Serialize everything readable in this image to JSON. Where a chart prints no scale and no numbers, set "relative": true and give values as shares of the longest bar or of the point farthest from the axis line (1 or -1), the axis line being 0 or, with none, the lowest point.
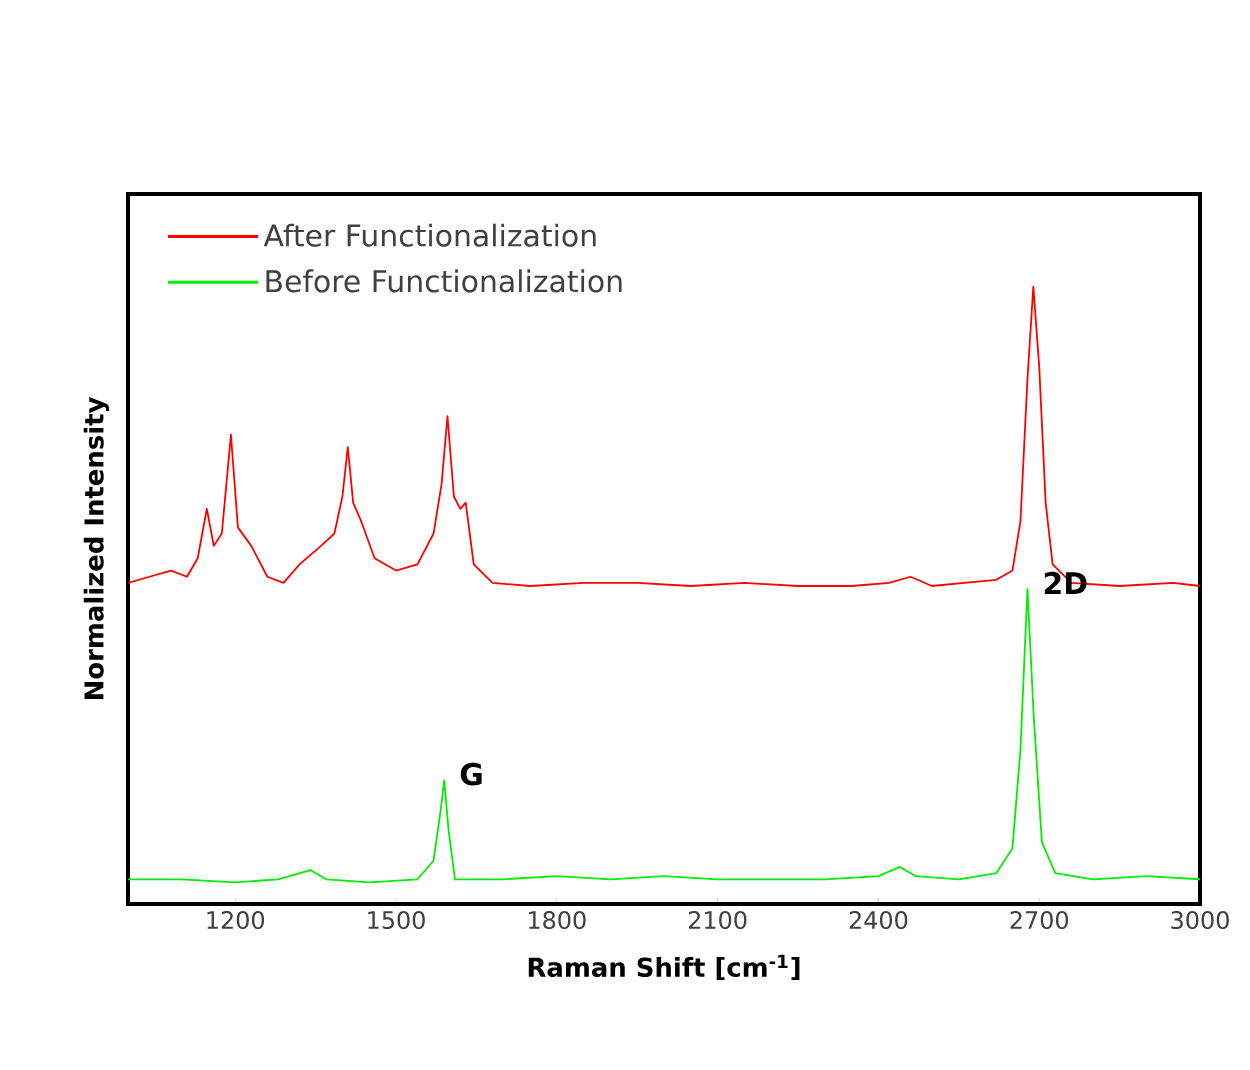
{
  "chart_data": {
    "type": "line",
    "relative": true,
    "xlabel": "Raman Shift [cm$^{-1}$]",
    "ylabel": "Normalized Intensity",
    "xlim": [
      1000,
      3000
    ],
    "xticks": [
      1200,
      1500,
      1800,
      2100,
      2400,
      2700,
      3000
    ],
    "legend": "top left",
    "grid": false,
    "marker": "none",
    "line_style": "solid",
    "series": [
      {
        "name": "After Functionalization",
        "color": "#ff0000",
        "x": [
          1000,
          1040,
          1080,
          1110,
          1130,
          1147,
          1160,
          1175,
          1192,
          1205,
          1230,
          1260,
          1290,
          1320,
          1360,
          1385,
          1400,
          1410,
          1420,
          1435,
          1460,
          1500,
          1540,
          1570,
          1585,
          1596,
          1608,
          1620,
          1630,
          1645,
          1680,
          1750,
          1850,
          1950,
          2050,
          2150,
          2250,
          2350,
          2420,
          2460,
          2500,
          2560,
          2620,
          2650,
          2665,
          2678,
          2689,
          2700,
          2712,
          2725,
          2760,
          2850,
          2950,
          3000
        ],
        "values": [
          0.52,
          0.53,
          0.54,
          0.53,
          0.56,
          0.64,
          0.58,
          0.6,
          0.76,
          0.61,
          0.58,
          0.53,
          0.52,
          0.55,
          0.58,
          0.6,
          0.66,
          0.74,
          0.65,
          0.62,
          0.56,
          0.54,
          0.55,
          0.6,
          0.68,
          0.79,
          0.66,
          0.64,
          0.65,
          0.55,
          0.52,
          0.515,
          0.52,
          0.52,
          0.515,
          0.52,
          0.515,
          0.515,
          0.52,
          0.53,
          0.515,
          0.52,
          0.525,
          0.54,
          0.62,
          0.85,
          1.0,
          0.87,
          0.65,
          0.55,
          0.52,
          0.515,
          0.52,
          0.515
        ]
      },
      {
        "name": "Before Functionalization",
        "color": "#00ee00",
        "x": [
          1000,
          1100,
          1200,
          1280,
          1340,
          1370,
          1450,
          1540,
          1570,
          1583,
          1590,
          1598,
          1610,
          1700,
          1800,
          1900,
          2000,
          2100,
          2200,
          2300,
          2400,
          2440,
          2470,
          2550,
          2620,
          2650,
          2665,
          2678,
          2690,
          2705,
          2730,
          2800,
          2900,
          3000
        ],
        "values": [
          0.04,
          0.04,
          0.035,
          0.04,
          0.055,
          0.04,
          0.035,
          0.04,
          0.07,
          0.15,
          0.2,
          0.12,
          0.04,
          0.04,
          0.045,
          0.04,
          0.045,
          0.04,
          0.04,
          0.04,
          0.045,
          0.06,
          0.045,
          0.04,
          0.05,
          0.09,
          0.25,
          0.51,
          0.3,
          0.1,
          0.05,
          0.04,
          0.045,
          0.04
        ]
      }
    ],
    "annotations": [
      {
        "text": "G",
        "x": 1590,
        "y": 0.2
      },
      {
        "text": "2D",
        "x": 2678,
        "y": 0.51
      }
    ]
  }
}
